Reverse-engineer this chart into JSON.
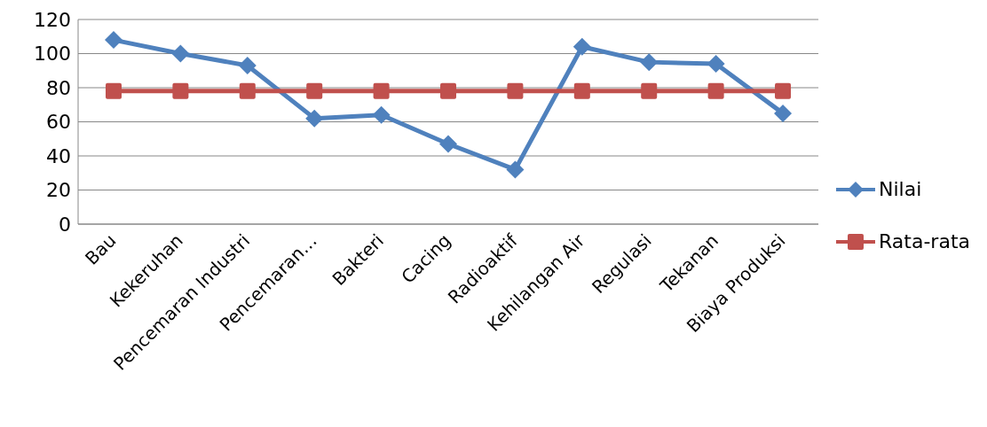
{
  "chart_data": {
    "type": "line",
    "categories": [
      "Bau",
      "Kekeruhan",
      "Pencemaran Industri",
      "Pencemaran…",
      "Bakteri",
      "Cacing",
      "Radioaktif",
      "Kehilangan Air",
      "Regulasi",
      "Tekanan",
      "Biaya Produksi"
    ],
    "series": [
      {
        "name": "Nilai",
        "color": "#4f81bd",
        "marker": "diamond",
        "values": [
          108,
          100,
          93,
          62,
          64,
          47,
          32,
          104,
          95,
          94,
          65
        ]
      },
      {
        "name": "Rata-rata",
        "color": "#c0504d",
        "marker": "square",
        "values": [
          78,
          78,
          78,
          78,
          78,
          78,
          78,
          78,
          78,
          78,
          78
        ]
      }
    ],
    "ylim": [
      0,
      120
    ],
    "yticks": [
      0,
      20,
      40,
      60,
      80,
      100,
      120
    ],
    "grid": "y",
    "legend": "right"
  }
}
